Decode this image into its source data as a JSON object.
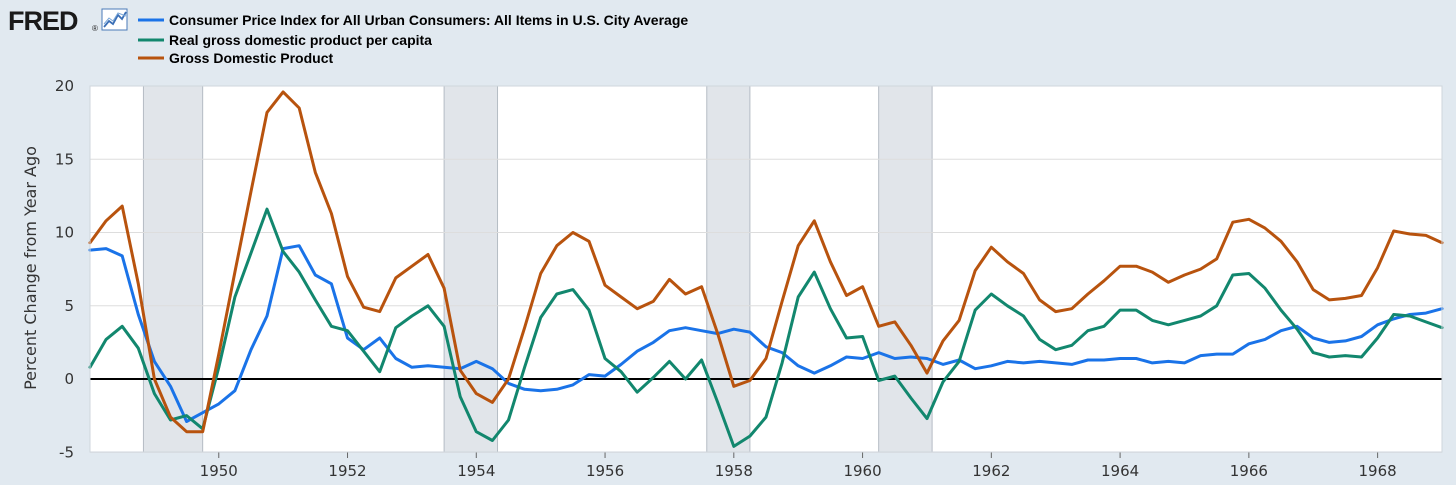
{
  "header": {
    "logo_text": "FRED",
    "logo_registered": "®",
    "logo_icon": "line-chart-icon"
  },
  "chart_data": {
    "type": "line",
    "title": "",
    "xlabel": "",
    "ylabel": "Percent Change from Year Ago",
    "xlim": [
      1948.0,
      1969.0
    ],
    "ylim": [
      -5,
      20
    ],
    "yticks": [
      -5,
      0,
      5,
      10,
      15,
      20
    ],
    "xticks": [
      1950,
      1952,
      1954,
      1956,
      1958,
      1960,
      1962,
      1964,
      1966,
      1968
    ],
    "zero_line": 0,
    "grid": true,
    "recessions": [
      [
        1948.83,
        1949.75
      ],
      [
        1953.5,
        1954.33
      ],
      [
        1957.58,
        1958.25
      ],
      [
        1960.25,
        1961.08
      ]
    ],
    "colors": {
      "recession": "#e1e5ea",
      "zero_line": "#000000",
      "grid": "#dddddd"
    },
    "series": [
      {
        "name": "Consumer Price Index for All Urban Consumers: All Items in U.S. City Average",
        "color": "#1a73e8",
        "x": [
          1948.0,
          1948.25,
          1948.5,
          1948.75,
          1949.0,
          1949.25,
          1949.5,
          1949.75,
          1950.0,
          1950.25,
          1950.5,
          1950.75,
          1951.0,
          1951.25,
          1951.5,
          1951.75,
          1952.0,
          1952.25,
          1952.5,
          1952.75,
          1953.0,
          1953.25,
          1953.5,
          1953.75,
          1954.0,
          1954.25,
          1954.5,
          1954.75,
          1955.0,
          1955.25,
          1955.5,
          1955.75,
          1956.0,
          1956.25,
          1956.5,
          1956.75,
          1957.0,
          1957.25,
          1957.5,
          1957.75,
          1958.0,
          1958.25,
          1958.5,
          1958.75,
          1959.0,
          1959.25,
          1959.5,
          1959.75,
          1960.0,
          1960.25,
          1960.5,
          1960.75,
          1961.0,
          1961.25,
          1961.5,
          1961.75,
          1962.0,
          1962.25,
          1962.5,
          1962.75,
          1963.0,
          1963.25,
          1963.5,
          1963.75,
          1964.0,
          1964.25,
          1964.5,
          1964.75,
          1965.0,
          1965.25,
          1965.5,
          1965.75,
          1966.0,
          1966.25,
          1966.5,
          1966.75,
          1967.0,
          1967.25,
          1967.5,
          1967.75,
          1968.0,
          1968.25,
          1968.5,
          1968.75,
          1969.0
        ],
        "values": [
          8.8,
          8.9,
          8.4,
          4.4,
          1.2,
          -0.5,
          -2.9,
          -2.3,
          -1.7,
          -0.8,
          2.0,
          4.3,
          8.9,
          9.1,
          7.1,
          6.5,
          2.8,
          2.0,
          2.8,
          1.4,
          0.8,
          0.9,
          0.8,
          0.7,
          1.2,
          0.7,
          -0.3,
          -0.7,
          -0.8,
          -0.7,
          -0.4,
          0.3,
          0.2,
          1.0,
          1.9,
          2.5,
          3.3,
          3.5,
          3.3,
          3.1,
          3.4,
          3.2,
          2.2,
          1.8,
          0.9,
          0.4,
          0.9,
          1.5,
          1.4,
          1.8,
          1.4,
          1.5,
          1.4,
          1.0,
          1.3,
          0.7,
          0.9,
          1.2,
          1.1,
          1.2,
          1.1,
          1.0,
          1.3,
          1.3,
          1.4,
          1.4,
          1.1,
          1.2,
          1.1,
          1.6,
          1.7,
          1.7,
          2.4,
          2.7,
          3.3,
          3.6,
          2.8,
          2.5,
          2.6,
          2.9,
          3.7,
          4.1,
          4.4,
          4.5,
          4.8
        ]
      },
      {
        "name": "Real gross domestic product per capita",
        "color": "#12876e",
        "x": [
          1948.0,
          1948.25,
          1948.5,
          1948.75,
          1949.0,
          1949.25,
          1949.5,
          1949.75,
          1950.0,
          1950.25,
          1950.5,
          1950.75,
          1951.0,
          1951.25,
          1951.5,
          1951.75,
          1952.0,
          1952.25,
          1952.5,
          1952.75,
          1953.0,
          1953.25,
          1953.5,
          1953.75,
          1954.0,
          1954.25,
          1954.5,
          1954.75,
          1955.0,
          1955.25,
          1955.5,
          1955.75,
          1956.0,
          1956.25,
          1956.5,
          1956.75,
          1957.0,
          1957.25,
          1957.5,
          1957.75,
          1958.0,
          1958.25,
          1958.5,
          1958.75,
          1959.0,
          1959.25,
          1959.5,
          1959.75,
          1960.0,
          1960.25,
          1960.5,
          1960.75,
          1961.0,
          1961.25,
          1961.5,
          1961.75,
          1962.0,
          1962.25,
          1962.5,
          1962.75,
          1963.0,
          1963.25,
          1963.5,
          1963.75,
          1964.0,
          1964.25,
          1964.5,
          1964.75,
          1965.0,
          1965.25,
          1965.5,
          1965.75,
          1966.0,
          1966.25,
          1966.5,
          1966.75,
          1967.0,
          1967.25,
          1967.5,
          1967.75,
          1968.0,
          1968.25,
          1968.5,
          1968.75,
          1969.0
        ],
        "values": [
          0.8,
          2.7,
          3.6,
          2.1,
          -1.0,
          -2.8,
          -2.5,
          -3.4,
          0.8,
          5.6,
          8.6,
          11.6,
          8.7,
          7.3,
          5.4,
          3.6,
          3.3,
          1.9,
          0.5,
          3.5,
          4.3,
          5.0,
          3.6,
          -1.2,
          -3.6,
          -4.2,
          -2.8,
          0.8,
          4.2,
          5.8,
          6.1,
          4.7,
          1.4,
          0.5,
          -0.9,
          0.1,
          1.2,
          0.0,
          1.3,
          -1.6,
          -4.6,
          -3.9,
          -2.6,
          1.1,
          5.6,
          7.3,
          4.8,
          2.8,
          2.9,
          -0.1,
          0.2,
          -1.3,
          -2.7,
          -0.2,
          1.2,
          4.7,
          5.8,
          5.0,
          4.3,
          2.7,
          2.0,
          2.3,
          3.3,
          3.6,
          4.7,
          4.7,
          4.0,
          3.7,
          4.0,
          4.3,
          5.0,
          7.1,
          7.2,
          6.2,
          4.7,
          3.4,
          1.8,
          1.5,
          1.6,
          1.5,
          2.8,
          4.4,
          4.3,
          3.9,
          3.5
        ]
      },
      {
        "name": "Gross Domestic Product",
        "color": "#b8530e",
        "x": [
          1948.0,
          1948.25,
          1948.5,
          1948.75,
          1949.0,
          1949.25,
          1949.5,
          1949.75,
          1950.0,
          1950.25,
          1950.5,
          1950.75,
          1951.0,
          1951.25,
          1951.5,
          1951.75,
          1952.0,
          1952.25,
          1952.5,
          1952.75,
          1953.0,
          1953.25,
          1953.5,
          1953.75,
          1954.0,
          1954.25,
          1954.5,
          1954.75,
          1955.0,
          1955.25,
          1955.5,
          1955.75,
          1956.0,
          1956.25,
          1956.5,
          1956.75,
          1957.0,
          1957.25,
          1957.5,
          1957.75,
          1958.0,
          1958.25,
          1958.5,
          1958.75,
          1959.0,
          1959.25,
          1959.5,
          1959.75,
          1960.0,
          1960.25,
          1960.5,
          1960.75,
          1961.0,
          1961.25,
          1961.5,
          1961.75,
          1962.0,
          1962.25,
          1962.5,
          1962.75,
          1963.0,
          1963.25,
          1963.5,
          1963.75,
          1964.0,
          1964.25,
          1964.5,
          1964.75,
          1965.0,
          1965.25,
          1965.5,
          1965.75,
          1966.0,
          1966.25,
          1966.5,
          1966.75,
          1967.0,
          1967.25,
          1967.5,
          1967.75,
          1968.0,
          1968.25,
          1968.5,
          1968.75,
          1969.0
        ],
        "values": [
          9.3,
          10.8,
          11.8,
          6.5,
          0.0,
          -2.6,
          -3.6,
          -3.6,
          1.7,
          7.3,
          12.8,
          18.2,
          19.6,
          18.5,
          14.1,
          11.3,
          7.0,
          4.9,
          4.6,
          6.9,
          7.7,
          8.5,
          6.2,
          0.6,
          -1.0,
          -1.6,
          0.0,
          3.5,
          7.2,
          9.1,
          10.0,
          9.4,
          6.4,
          5.6,
          4.8,
          5.3,
          6.8,
          5.8,
          6.3,
          3.1,
          -0.5,
          -0.1,
          1.4,
          5.3,
          9.1,
          10.8,
          8.0,
          5.7,
          6.3,
          3.6,
          3.9,
          2.3,
          0.4,
          2.6,
          4.0,
          7.4,
          9.0,
          8.0,
          7.2,
          5.4,
          4.6,
          4.8,
          5.8,
          6.7,
          7.7,
          7.7,
          7.3,
          6.6,
          7.1,
          7.5,
          8.2,
          10.7,
          10.9,
          10.3,
          9.4,
          8.0,
          6.1,
          5.4,
          5.5,
          5.7,
          7.6,
          10.1,
          9.9,
          9.8,
          9.3
        ]
      }
    ]
  }
}
